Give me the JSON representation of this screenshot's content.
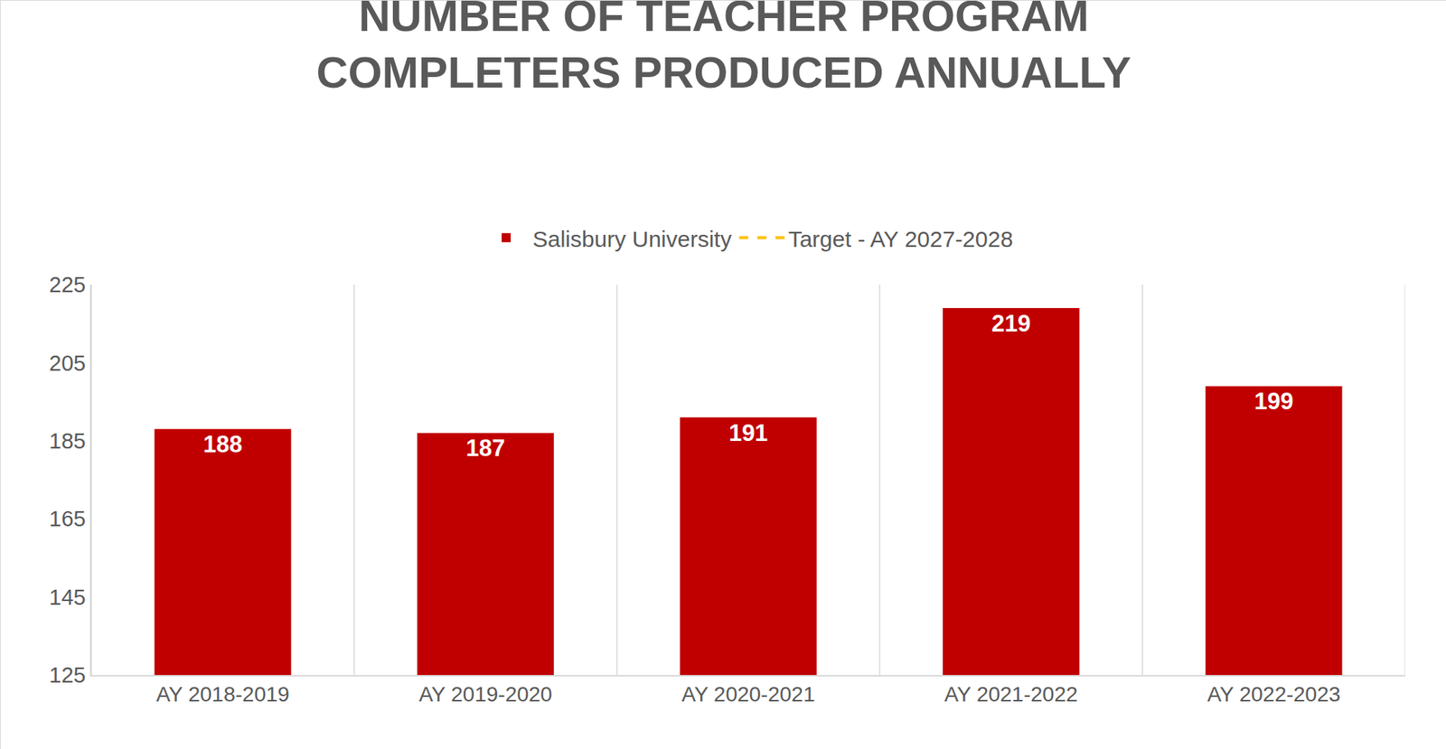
{
  "chart_data": {
    "type": "bar",
    "title": "NUMBER OF TEACHER PROGRAM COMPLETERS PRODUCED ANNUALLY",
    "categories": [
      "AY 2018-2019",
      "AY 2019-2020",
      "AY 2020-2021",
      "AY 2021-2022",
      "AY 2022-2023"
    ],
    "series": [
      {
        "name": "Salisbury University",
        "type": "bar",
        "color": "#c00000",
        "values": [
          188,
          187,
          191,
          219,
          199
        ]
      },
      {
        "name": "Target - AY 2027-2028",
        "type": "line",
        "line_style": "dashed",
        "color": "#ffc000",
        "values": [
          null,
          null,
          null,
          null,
          null
        ]
      }
    ],
    "ylim": [
      125,
      225
    ],
    "yticks": [
      125,
      145,
      165,
      185,
      205,
      225
    ],
    "grid": true,
    "legend": "top",
    "data_labels": true
  }
}
